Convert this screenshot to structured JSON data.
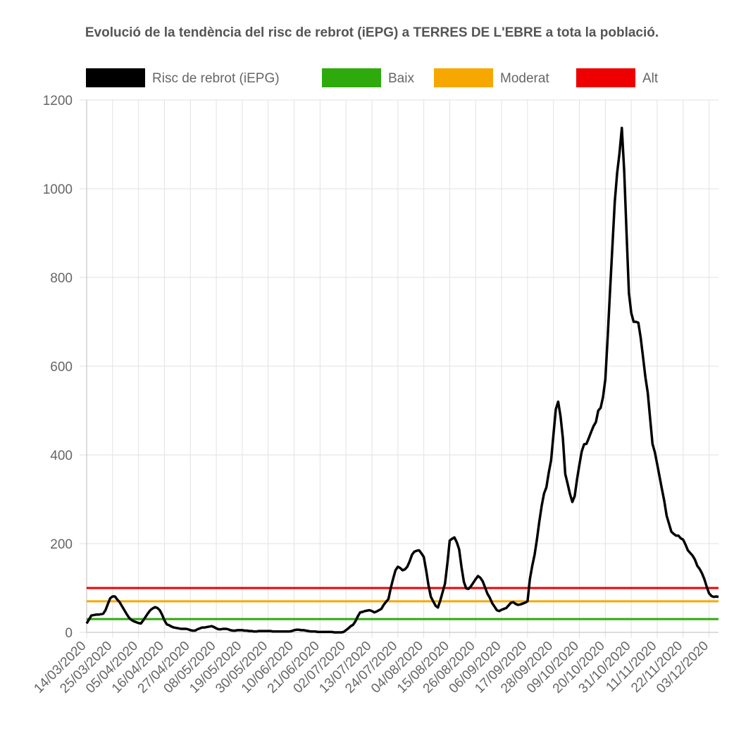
{
  "chart_data": {
    "type": "line",
    "title": "Evolució de la tendència del risc de rebrot (iEPG) a TERRES DE L'EBRE a tota la població.",
    "categories": [
      "14/03/2020",
      null,
      null,
      null,
      null,
      null,
      null,
      null,
      null,
      null,
      null,
      "25/03/2020",
      null,
      null,
      null,
      null,
      null,
      null,
      null,
      null,
      null,
      null,
      "05/04/2020",
      null,
      null,
      null,
      null,
      null,
      null,
      null,
      null,
      null,
      null,
      "16/04/2020",
      null,
      null,
      null,
      null,
      null,
      null,
      null,
      null,
      null,
      null,
      "27/04/2020",
      null,
      null,
      null,
      null,
      null,
      null,
      null,
      null,
      null,
      null,
      "08/05/2020",
      null,
      null,
      null,
      null,
      null,
      null,
      null,
      null,
      null,
      null,
      "19/05/2020",
      null,
      null,
      null,
      null,
      null,
      null,
      null,
      null,
      null,
      null,
      "30/05/2020",
      null,
      null,
      null,
      null,
      null,
      null,
      null,
      null,
      null,
      null,
      "10/06/2020",
      null,
      null,
      null,
      null,
      null,
      null,
      null,
      null,
      null,
      null,
      "21/06/2020",
      null,
      null,
      null,
      null,
      null,
      null,
      null,
      null,
      null,
      null,
      "02/07/2020",
      null,
      null,
      null,
      null,
      null,
      null,
      null,
      null,
      null,
      null,
      "13/07/2020",
      null,
      null,
      null,
      null,
      null,
      null,
      null,
      null,
      null,
      null,
      "24/07/2020",
      null,
      null,
      null,
      null,
      null,
      null,
      null,
      null,
      null,
      null,
      "04/08/2020",
      null,
      null,
      null,
      null,
      null,
      null,
      null,
      null,
      null,
      null,
      "15/08/2020",
      null,
      null,
      null,
      null,
      null,
      null,
      null,
      null,
      null,
      null,
      "26/08/2020",
      null,
      null,
      null,
      null,
      null,
      null,
      null,
      null,
      null,
      null,
      "06/09/2020",
      null,
      null,
      null,
      null,
      null,
      null,
      null,
      null,
      null,
      null,
      "17/09/2020",
      null,
      null,
      null,
      null,
      null,
      null,
      null,
      null,
      null,
      null,
      "28/09/2020",
      null,
      null,
      null,
      null,
      null,
      null,
      null,
      null,
      null,
      null,
      "09/10/2020",
      null,
      null,
      null,
      null,
      null,
      null,
      null,
      null,
      null,
      null,
      "20/10/2020",
      null,
      null,
      null,
      null,
      null,
      null,
      null,
      null,
      null,
      null,
      "31/10/2020",
      null,
      null,
      null,
      null,
      null,
      null,
      null,
      null,
      null,
      null,
      "11/11/2020",
      null,
      null,
      null,
      null,
      null,
      null,
      null,
      null,
      null,
      null,
      "22/11/2020",
      null,
      null,
      null,
      null,
      null,
      null,
      null,
      null,
      null,
      null,
      "03/12/2020",
      null,
      null,
      null,
      null
    ],
    "series": [
      {
        "name": "Risc de rebrot (iEPG)",
        "color": "#000000",
        "values": [
          20,
          29,
          38,
          39,
          40,
          40,
          41,
          42,
          50,
          64,
          77,
          81,
          81,
          74,
          68,
          59,
          50,
          41,
          33,
          28,
          25,
          23,
          21,
          20,
          27,
          35,
          43,
          50,
          54,
          57,
          55,
          50,
          40,
          27,
          18,
          16,
          13,
          11,
          10,
          9,
          8,
          8,
          8,
          7,
          5,
          4,
          4,
          7,
          9,
          11,
          11,
          12,
          13,
          14,
          12,
          9,
          7,
          7,
          8,
          8,
          7,
          5,
          4,
          4,
          5,
          5,
          5,
          4,
          4,
          3,
          3,
          2,
          2,
          3,
          3,
          3,
          3,
          3,
          3,
          2,
          2,
          2,
          2,
          2,
          2,
          2,
          2,
          3,
          5,
          6,
          6,
          5,
          5,
          4,
          3,
          2,
          2,
          2,
          1,
          1,
          1,
          1,
          1,
          1,
          1,
          0,
          0,
          0,
          0,
          1,
          5,
          9,
          14,
          17,
          25,
          36,
          45,
          46,
          48,
          49,
          50,
          48,
          45,
          47,
          50,
          53,
          62,
          69,
          75,
          100,
          121,
          140,
          148,
          145,
          140,
          142,
          148,
          160,
          175,
          182,
          184,
          185,
          178,
          170,
          140,
          106,
          80,
          70,
          60,
          56,
          72,
          91,
          110,
          155,
          207,
          211,
          214,
          203,
          187,
          147,
          114,
          99,
          98,
          104,
          112,
          120,
          127,
          123,
          115,
          101,
          87,
          78,
          66,
          58,
          50,
          48,
          51,
          53,
          55,
          61,
          67,
          68,
          64,
          62,
          63,
          65,
          67,
          70,
          120,
          150,
          175,
          210,
          250,
          285,
          313,
          327,
          360,
          388,
          446,
          503,
          520,
          487,
          437,
          357,
          335,
          312,
          294,
          307,
          345,
          378,
          408,
          424,
          425,
          438,
          452,
          465,
          474,
          500,
          506,
          530,
          570,
          666,
          770,
          870,
          970,
          1035,
          1080,
          1137,
          1040,
          900,
          765,
          720,
          700,
          700,
          698,
          664,
          620,
          575,
          540,
          482,
          425,
          406,
          379,
          351,
          323,
          296,
          263,
          245,
          227,
          222,
          218,
          218,
          212,
          209,
          198,
          185,
          179,
          173,
          164,
          150,
          143,
          133,
          120,
          103,
          88,
          82,
          80,
          81,
          80
        ]
      }
    ],
    "reference_lines": [
      {
        "name": "Baix",
        "color": "#2eaa0c",
        "value": 30
      },
      {
        "name": "Moderat",
        "color": "#f7a800",
        "value": 70
      },
      {
        "name": "Alt",
        "color": "#ee0000",
        "value": 100
      }
    ],
    "ylim": [
      0,
      1200
    ],
    "yticks": [
      0,
      200,
      400,
      600,
      800,
      1000,
      1200
    ],
    "grid": true
  }
}
